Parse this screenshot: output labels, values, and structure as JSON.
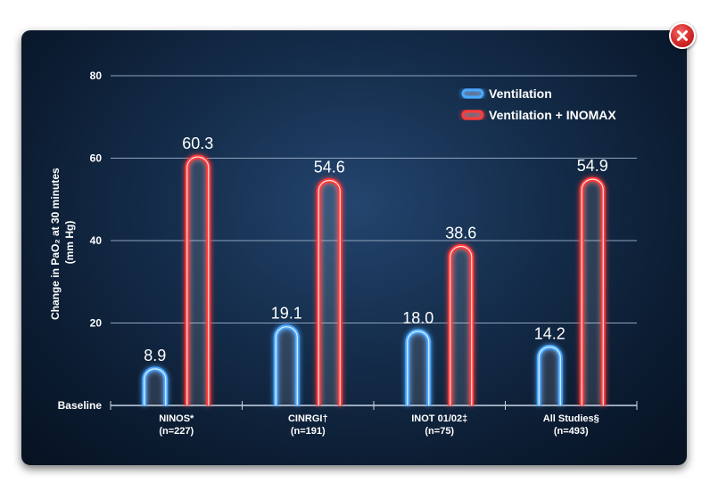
{
  "window": {
    "close_icon": "close-icon",
    "close_color": "#d42828"
  },
  "chart_data": {
    "type": "bar",
    "categories": [
      {
        "name": "NINOS*",
        "n": "(n=227)"
      },
      {
        "name": "CINRGI†",
        "n": "(n=191)"
      },
      {
        "name": "INOT 01/02‡",
        "n": "(n=75)"
      },
      {
        "name": "All Studies§",
        "n": "(n=493)"
      }
    ],
    "series": [
      {
        "name": "Ventilation",
        "color": "#4aa8ff",
        "values": [
          8.9,
          19.1,
          18.0,
          14.2
        ],
        "labels": [
          "8.9",
          "19.1",
          "18.0",
          "14.2"
        ]
      },
      {
        "name": "Ventilation + INOMAX",
        "color": "#ff3b3b",
        "values": [
          60.3,
          54.6,
          38.6,
          54.9
        ],
        "labels": [
          "60.3",
          "54.6",
          "38.6",
          "54.9"
        ]
      }
    ],
    "ylabel_line1": "Change in PaO₂ at 30 minutes",
    "ylabel_line2": "(mm Hg)",
    "ylim": [
      0,
      80
    ],
    "yticks": [
      {
        "value": 0,
        "label": "Baseline"
      },
      {
        "value": 20,
        "label": "20"
      },
      {
        "value": 40,
        "label": "40"
      },
      {
        "value": 60,
        "label": "60"
      },
      {
        "value": 80,
        "label": "80"
      }
    ],
    "grid": true,
    "legend_position": "top-right"
  }
}
